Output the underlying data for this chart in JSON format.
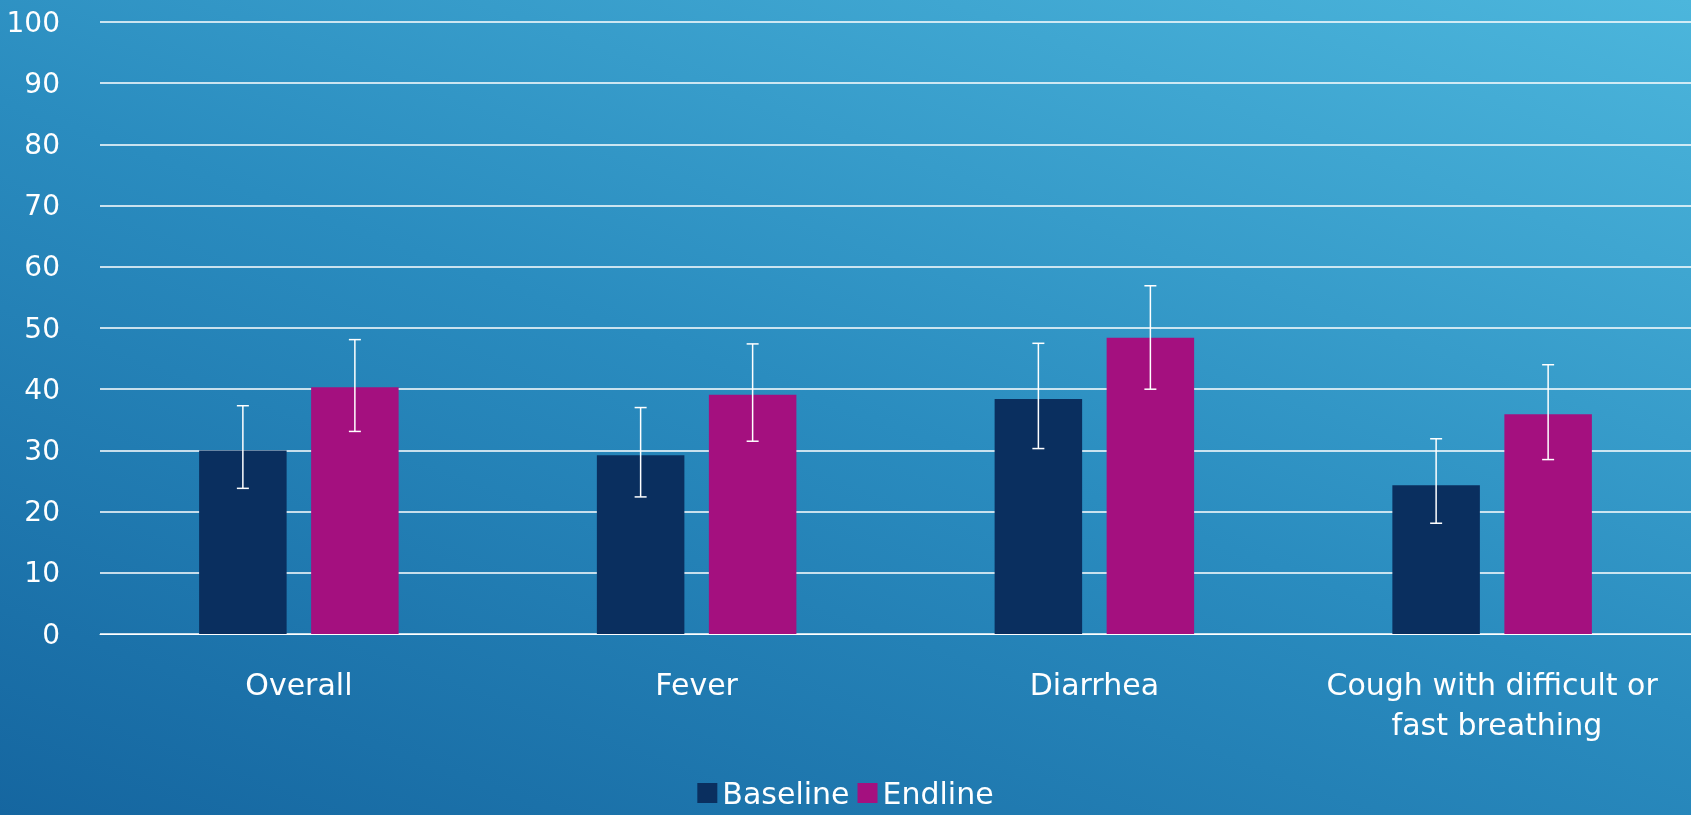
{
  "chart_data": {
    "type": "bar",
    "categories": [
      "Overall",
      "Fever",
      "Diarrhea",
      "Cough with difficult or fast breathing"
    ],
    "series": [
      {
        "name": "Baseline",
        "color": "#0a2f5f",
        "values": [
          30,
          29.2,
          38.4,
          24.3
        ],
        "errors": [
          [
            23.8,
            37.3
          ],
          [
            22.4,
            37
          ],
          [
            30.3,
            47.5
          ],
          [
            18.1,
            31.9
          ]
        ]
      },
      {
        "name": "Endline",
        "color": "#a4107f",
        "values": [
          40.3,
          39.1,
          48.4,
          35.9
        ],
        "errors": [
          [
            33.1,
            48.1
          ],
          [
            31.5,
            47.4
          ],
          [
            40,
            56.9
          ],
          [
            28.5,
            44
          ]
        ]
      }
    ],
    "ylim": [
      0,
      100
    ],
    "yticks": [
      0,
      10,
      20,
      30,
      40,
      50,
      60,
      70,
      80,
      90,
      100
    ],
    "grid": "y",
    "legend": "bottom"
  }
}
